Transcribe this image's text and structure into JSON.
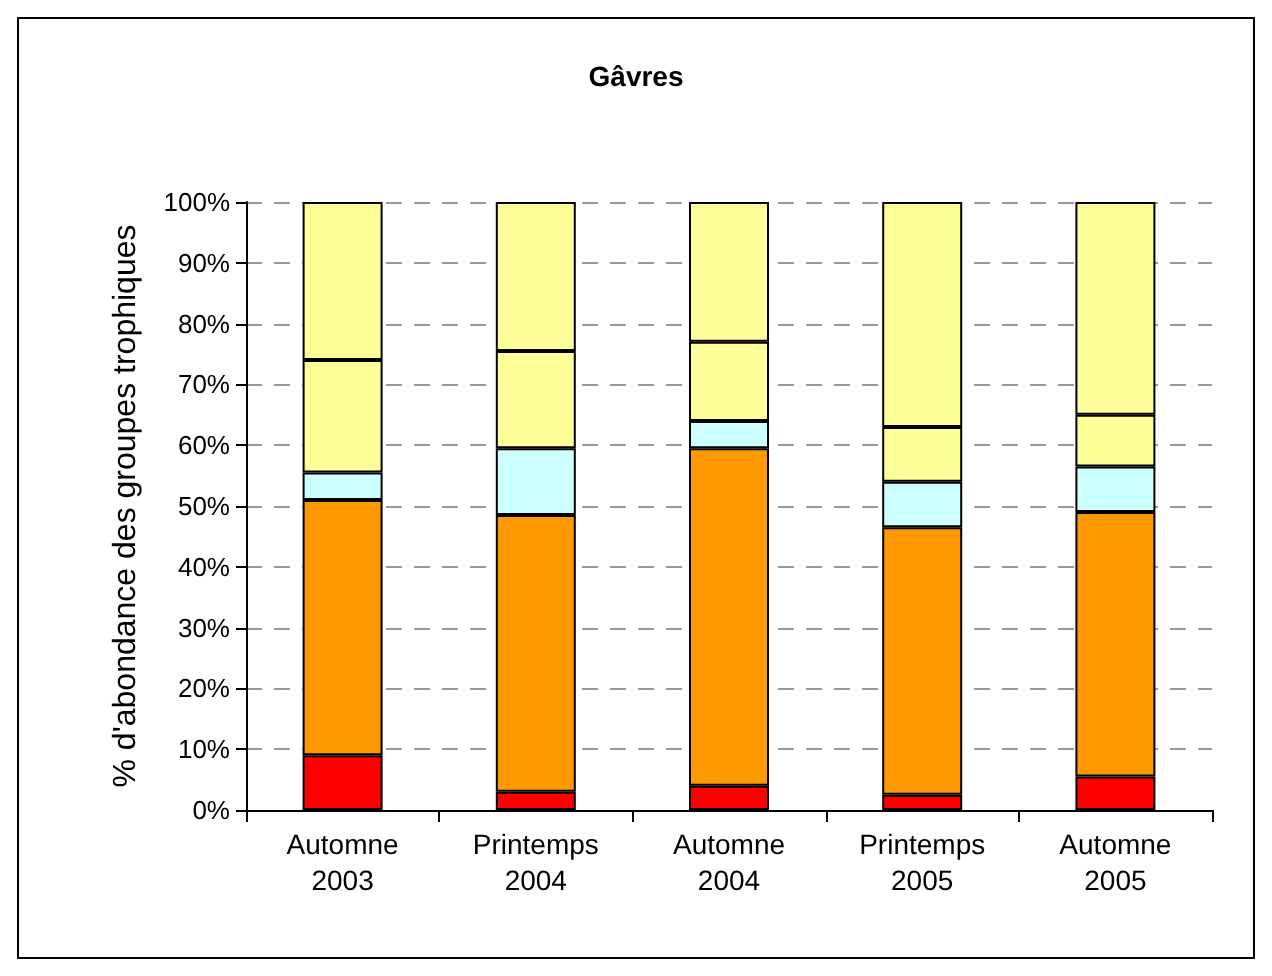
{
  "chart_data": {
    "type": "bar",
    "title": "Gâvres",
    "ylabel": "% d'abondance des groupes trophiques",
    "stacked": true,
    "categories": [
      "Automne\n2003",
      "Printemps\n2004",
      "Automne\n2004",
      "Printemps\n2005",
      "Automne\n2005"
    ],
    "series": [
      {
        "color": "#ff0000",
        "values": [
          9,
          3,
          4,
          2.5,
          5.5
        ]
      },
      {
        "color": "#ff9900",
        "values": [
          42,
          45.5,
          55.5,
          44,
          43.5
        ]
      },
      {
        "color": "#ccffff",
        "values": [
          4.5,
          11,
          4.5,
          7.5,
          7.5
        ]
      },
      {
        "color": "#ffff99",
        "values": [
          18.5,
          16,
          13,
          9,
          8.5
        ]
      },
      {
        "color": "#ffff99",
        "values": [
          26,
          24.5,
          23,
          37,
          35
        ]
      }
    ],
    "ylim": [
      0,
      100
    ],
    "yticks": [
      {
        "value": 0,
        "label": "0%"
      },
      {
        "value": 10,
        "label": "10%"
      },
      {
        "value": 20,
        "label": "20%"
      },
      {
        "value": 30,
        "label": "30%"
      },
      {
        "value": 40,
        "label": "40%"
      },
      {
        "value": 50,
        "label": "50%"
      },
      {
        "value": 60,
        "label": "60%"
      },
      {
        "value": 70,
        "label": "70%"
      },
      {
        "value": 80,
        "label": "80%"
      },
      {
        "value": 90,
        "label": "90%"
      },
      {
        "value": 100,
        "label": "100%"
      }
    ],
    "grid": "y"
  }
}
